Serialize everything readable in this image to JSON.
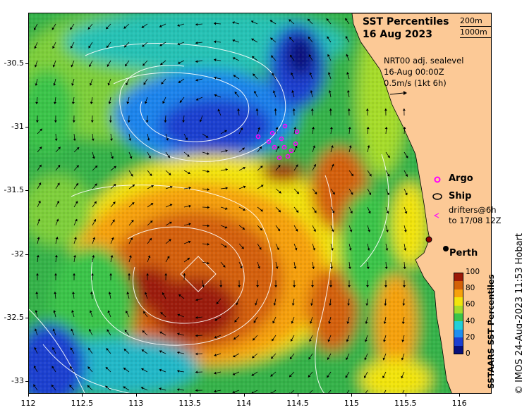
{
  "title": {
    "line1": "SST Percentiles",
    "line2": "16 Aug 2023"
  },
  "isobaths": [
    "200m",
    "1000m"
  ],
  "current_info": [
    "NRT00 adj. sealevel",
    "16-Aug 00:00Z",
    "0.5m/s (1kt 6h)"
  ],
  "legend": {
    "argo": "Argo",
    "ship": "Ship",
    "drifters": [
      "drifters@6h",
      "to 17/08 12Z"
    ]
  },
  "city": "Perth",
  "colorbar": {
    "label": "SSTAARS SST Percentiles",
    "ticks": [
      "100",
      "80",
      "60",
      "40",
      "20",
      "0"
    ],
    "colors": [
      "#08107a",
      "#1c3fd0",
      "#1e8ef0",
      "#22cfd8",
      "#3bc44a",
      "#a6dc2a",
      "#f2e40d",
      "#f6a10c",
      "#d46108",
      "#9c1a08"
    ]
  },
  "credit": "© IMOS 24-Aug-2023 11:53 Hobart",
  "axes": {
    "x_ticks": [
      "112",
      "112.5",
      "113",
      "113.5",
      "114",
      "114.5",
      "115",
      "115.5",
      "116"
    ],
    "y_ticks": [
      "-30.5",
      "-31",
      "-31.5",
      "-32",
      "-32.5",
      "-33"
    ],
    "xlim": [
      112,
      116.3
    ],
    "ylim": [
      -33.1,
      -30.1
    ]
  },
  "colors": {
    "land": "#fcc996",
    "contour": "#ffffff",
    "argo": "#ff00ff"
  }
}
